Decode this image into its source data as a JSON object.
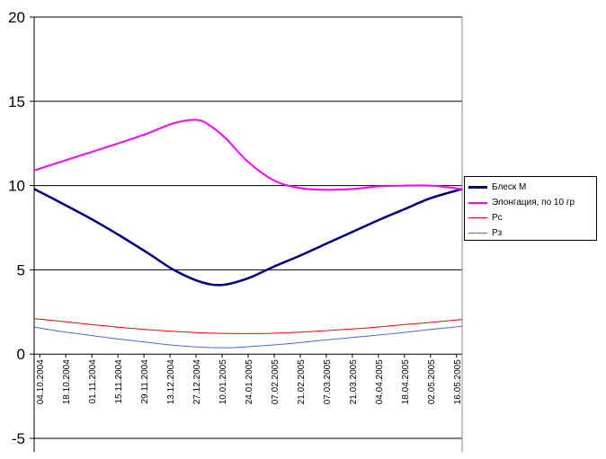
{
  "chart_data": {
    "type": "line",
    "title": "",
    "xlabel": "",
    "ylabel": "",
    "ylim": [
      -5,
      20
    ],
    "yticks": [
      -5,
      0,
      5,
      10,
      15,
      20
    ],
    "grid": "horizontal",
    "legend_position": "right",
    "x_tick_labels": [
      "04.10.2004",
      "18.10.2004",
      "01.11.2004",
      "15.11.2004",
      "29.11.2004",
      "13.12.2004",
      "27.12.2004",
      "10.01.2005",
      "24.01.2005",
      "07.02.2005",
      "21.02.2005",
      "07.03.2005",
      "21.03.2005",
      "04.04.2005",
      "18.04.2005",
      "02.05.2005",
      "16.05.2005"
    ],
    "x_range": [
      "2004-10-01",
      "2005-05-19"
    ],
    "series": [
      {
        "name": "Блеск M",
        "color": "#00007f",
        "points": [
          [
            "2004-10-01",
            9.8
          ],
          [
            "2004-10-15",
            9.0
          ],
          [
            "2004-11-01",
            8.0
          ],
          [
            "2004-11-15",
            7.1
          ],
          [
            "2004-12-01",
            6.0
          ],
          [
            "2004-12-15",
            5.0
          ],
          [
            "2004-12-29",
            4.3
          ],
          [
            "2005-01-10",
            4.1
          ],
          [
            "2005-01-24",
            4.5
          ],
          [
            "2005-02-07",
            5.2
          ],
          [
            "2005-02-21",
            5.85
          ],
          [
            "2005-03-07",
            6.55
          ],
          [
            "2005-03-21",
            7.25
          ],
          [
            "2005-04-04",
            7.95
          ],
          [
            "2005-04-18",
            8.6
          ],
          [
            "2005-05-02",
            9.25
          ],
          [
            "2005-05-19",
            9.8
          ]
        ]
      },
      {
        "name": "Элонгация, по 10 гр",
        "color": "#ff00ff",
        "points": [
          [
            "2004-10-01",
            10.9
          ],
          [
            "2004-10-15",
            11.4
          ],
          [
            "2004-11-01",
            12.0
          ],
          [
            "2004-11-15",
            12.5
          ],
          [
            "2004-12-01",
            13.1
          ],
          [
            "2004-12-15",
            13.7
          ],
          [
            "2004-12-27",
            13.9
          ],
          [
            "2005-01-03",
            13.6
          ],
          [
            "2005-01-12",
            12.8
          ],
          [
            "2005-01-24",
            11.4
          ],
          [
            "2005-02-07",
            10.3
          ],
          [
            "2005-02-21",
            9.85
          ],
          [
            "2005-03-07",
            9.75
          ],
          [
            "2005-03-21",
            9.8
          ],
          [
            "2005-04-04",
            9.95
          ],
          [
            "2005-04-18",
            10.0
          ],
          [
            "2005-05-02",
            10.0
          ],
          [
            "2005-05-19",
            9.8
          ]
        ]
      },
      {
        "name": "Рс",
        "color": "#ff0000",
        "points": [
          [
            "2004-10-01",
            2.1
          ],
          [
            "2004-10-15",
            1.95
          ],
          [
            "2004-11-01",
            1.75
          ],
          [
            "2004-11-15",
            1.6
          ],
          [
            "2004-12-01",
            1.45
          ],
          [
            "2004-12-15",
            1.35
          ],
          [
            "2005-01-01",
            1.25
          ],
          [
            "2005-01-15",
            1.22
          ],
          [
            "2005-02-01",
            1.22
          ],
          [
            "2005-02-15",
            1.27
          ],
          [
            "2005-03-01",
            1.35
          ],
          [
            "2005-03-15",
            1.45
          ],
          [
            "2005-04-01",
            1.58
          ],
          [
            "2005-04-15",
            1.72
          ],
          [
            "2005-05-01",
            1.87
          ],
          [
            "2005-05-19",
            2.05
          ]
        ]
      },
      {
        "name": "Рз",
        "color": "#4169e1",
        "points": [
          [
            "2004-10-01",
            1.6
          ],
          [
            "2004-10-15",
            1.35
          ],
          [
            "2004-11-01",
            1.1
          ],
          [
            "2004-11-15",
            0.9
          ],
          [
            "2004-12-01",
            0.7
          ],
          [
            "2004-12-15",
            0.52
          ],
          [
            "2005-01-01",
            0.4
          ],
          [
            "2005-01-15",
            0.38
          ],
          [
            "2005-02-01",
            0.5
          ],
          [
            "2005-02-15",
            0.62
          ],
          [
            "2005-03-01",
            0.78
          ],
          [
            "2005-03-15",
            0.92
          ],
          [
            "2005-04-01",
            1.1
          ],
          [
            "2005-04-15",
            1.25
          ],
          [
            "2005-05-01",
            1.45
          ],
          [
            "2005-05-19",
            1.65
          ]
        ]
      }
    ]
  }
}
